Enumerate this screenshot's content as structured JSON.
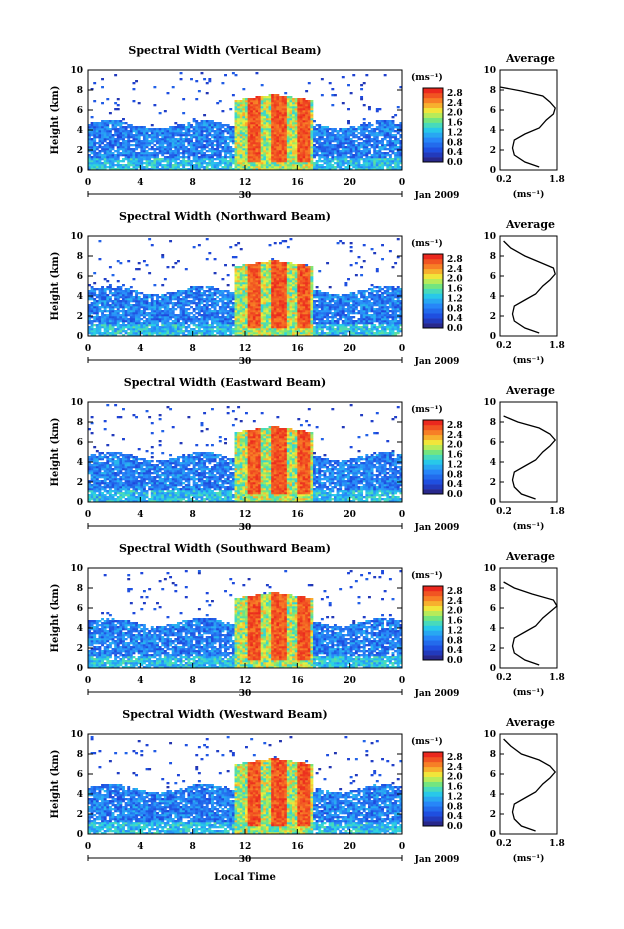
{
  "figure": {
    "xlabel": "Local Time",
    "ylabel": "Height (km)",
    "unit_label": "(ms⁻¹)",
    "average_title": "Average",
    "date_label": "Jan 2009",
    "day_label": "30"
  },
  "chart_data": [
    {
      "type": "heatmap",
      "title": "Spectral Width (Vertical Beam)",
      "xlabel": "",
      "ylabel": "Height (km)",
      "x_ticks": [
        "0",
        "4",
        "8",
        "12",
        "16",
        "20",
        "0"
      ],
      "xlim": [
        0,
        24
      ],
      "y_ticks": [
        "0",
        "2",
        "4",
        "6",
        "8",
        "10"
      ],
      "ylim": [
        0,
        10
      ],
      "colorbar": {
        "ticks": [
          "0.0",
          "0.4",
          "0.8",
          "1.2",
          "1.6",
          "2.0",
          "2.4",
          "2.8"
        ],
        "range": [
          0,
          3.0
        ],
        "unit": "(ms⁻¹)"
      },
      "average_profile": {
        "title": "Average",
        "xlim": [
          0.2,
          1.8
        ],
        "x_ticks": [
          "0.2",
          "1.8"
        ],
        "xlabel": "(ms⁻¹)",
        "heights": [
          0.3,
          0.8,
          1.5,
          2.2,
          3.0,
          3.6,
          4.2,
          5.0,
          5.6,
          6.2,
          6.8,
          7.4,
          7.9,
          8.3
        ],
        "values": [
          1.3,
          0.9,
          0.6,
          0.55,
          0.6,
          0.9,
          1.3,
          1.5,
          1.7,
          1.75,
          1.6,
          1.4,
          0.8,
          0.2
        ]
      }
    },
    {
      "type": "heatmap",
      "title": "Spectral Width (Northward Beam)",
      "xlabel": "",
      "ylabel": "Height (km)",
      "x_ticks": [
        "0",
        "4",
        "8",
        "12",
        "16",
        "20",
        "0"
      ],
      "xlim": [
        0,
        24
      ],
      "y_ticks": [
        "0",
        "2",
        "4",
        "6",
        "8",
        "10"
      ],
      "ylim": [
        0,
        10
      ],
      "colorbar": {
        "ticks": [
          "0.0",
          "0.4",
          "0.8",
          "1.2",
          "1.6",
          "2.0",
          "2.4",
          "2.8"
        ],
        "range": [
          0,
          3.0
        ],
        "unit": "(ms⁻¹)"
      },
      "average_profile": {
        "title": "Average",
        "xlim": [
          0.2,
          1.8
        ],
        "x_ticks": [
          "0.2",
          "1.8"
        ],
        "xlabel": "(ms⁻¹)",
        "heights": [
          0.3,
          0.8,
          1.5,
          2.2,
          3.0,
          3.6,
          4.2,
          5.0,
          5.6,
          6.2,
          6.8,
          7.4,
          8.0,
          8.8,
          9.5
        ],
        "values": [
          1.3,
          0.9,
          0.6,
          0.55,
          0.6,
          0.9,
          1.2,
          1.4,
          1.6,
          1.75,
          1.7,
          1.3,
          0.9,
          0.5,
          0.3
        ]
      }
    },
    {
      "type": "heatmap",
      "title": "Spectral Width (Eastward Beam)",
      "xlabel": "",
      "ylabel": "Height (km)",
      "x_ticks": [
        "0",
        "4",
        "8",
        "12",
        "16",
        "20",
        "0"
      ],
      "xlim": [
        0,
        24
      ],
      "y_ticks": [
        "0",
        "2",
        "4",
        "6",
        "8",
        "10"
      ],
      "ylim": [
        0,
        10
      ],
      "colorbar": {
        "ticks": [
          "0.0",
          "0.4",
          "0.8",
          "1.2",
          "1.6",
          "2.0",
          "2.4",
          "2.8"
        ],
        "range": [
          0,
          3.0
        ],
        "unit": "(ms⁻¹)"
      },
      "average_profile": {
        "title": "Average",
        "xlim": [
          0.2,
          1.8
        ],
        "x_ticks": [
          "0.2",
          "1.8"
        ],
        "xlabel": "(ms⁻¹)",
        "heights": [
          0.3,
          0.8,
          1.5,
          2.2,
          3.0,
          3.6,
          4.2,
          5.0,
          5.6,
          6.2,
          6.8,
          7.4,
          8.0,
          8.6
        ],
        "values": [
          1.2,
          0.8,
          0.6,
          0.55,
          0.6,
          0.9,
          1.2,
          1.4,
          1.6,
          1.75,
          1.6,
          1.3,
          0.7,
          0.3
        ]
      }
    },
    {
      "type": "heatmap",
      "title": "Spectral Width (Southward Beam)",
      "xlabel": "",
      "ylabel": "Height (km)",
      "x_ticks": [
        "0",
        "4",
        "8",
        "12",
        "16",
        "20",
        "0"
      ],
      "xlim": [
        0,
        24
      ],
      "y_ticks": [
        "0",
        "2",
        "4",
        "6",
        "8",
        "10"
      ],
      "ylim": [
        0,
        10
      ],
      "colorbar": {
        "ticks": [
          "0.0",
          "0.4",
          "0.8",
          "1.2",
          "1.6",
          "2.0",
          "2.4",
          "2.8"
        ],
        "range": [
          0,
          3.0
        ],
        "unit": "(ms⁻¹)"
      },
      "average_profile": {
        "title": "Average",
        "xlim": [
          0.2,
          1.8
        ],
        "x_ticks": [
          "0.2",
          "1.8"
        ],
        "xlabel": "(ms⁻¹)",
        "heights": [
          0.3,
          0.8,
          1.5,
          2.2,
          3.0,
          3.6,
          4.2,
          5.0,
          5.6,
          6.2,
          6.8,
          7.4,
          8.0,
          8.6
        ],
        "values": [
          1.3,
          0.9,
          0.6,
          0.55,
          0.6,
          0.9,
          1.2,
          1.4,
          1.6,
          1.8,
          1.7,
          1.1,
          0.6,
          0.3
        ]
      }
    },
    {
      "type": "heatmap",
      "title": "Spectral Width (Westward Beam)",
      "xlabel": "Local Time",
      "ylabel": "Height (km)",
      "x_ticks": [
        "0",
        "4",
        "8",
        "12",
        "16",
        "20",
        "0"
      ],
      "xlim": [
        0,
        24
      ],
      "y_ticks": [
        "0",
        "2",
        "4",
        "6",
        "8",
        "10"
      ],
      "ylim": [
        0,
        10
      ],
      "colorbar": {
        "ticks": [
          "0.0",
          "0.4",
          "0.8",
          "1.2",
          "1.6",
          "2.0",
          "2.4",
          "2.8"
        ],
        "range": [
          0,
          3.0
        ],
        "unit": "(ms⁻¹)"
      },
      "average_profile": {
        "title": "Average",
        "xlim": [
          0.2,
          1.8
        ],
        "x_ticks": [
          "0.2",
          "1.8"
        ],
        "xlabel": "(ms⁻¹)",
        "heights": [
          0.3,
          0.8,
          1.5,
          2.2,
          3.0,
          3.6,
          4.2,
          5.0,
          5.6,
          6.2,
          6.8,
          7.4,
          8.0,
          8.8,
          9.5
        ],
        "values": [
          1.2,
          0.8,
          0.6,
          0.55,
          0.6,
          0.9,
          1.2,
          1.4,
          1.6,
          1.75,
          1.6,
          1.3,
          0.8,
          0.5,
          0.3
        ]
      }
    }
  ]
}
